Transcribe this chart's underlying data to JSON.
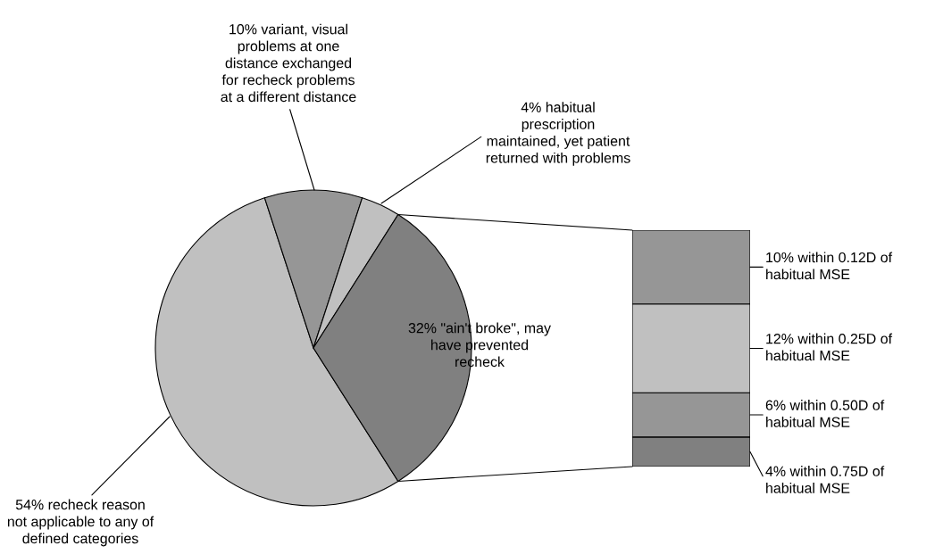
{
  "chart_data": [
    {
      "type": "pie",
      "categories": [
        "54% recheck reason\nnot applicable to any of\ndefined categories",
        "10% variant, visual\nproblems at one\ndistance exchanged\nfor recheck problems\nat a different distance",
        "4% habitual\nprescription\nmaintained, yet patient\nreturned with problems",
        "32% \"ain't broke\", may\nhave prevented\nrecheck"
      ],
      "values": [
        54,
        10,
        4,
        32
      ],
      "colors": [
        "#c0c0c0",
        "#969696",
        "#c0c0c0",
        "#808080"
      ]
    },
    {
      "type": "bar",
      "stacked": true,
      "categories": [
        null
      ],
      "series": [
        {
          "color": "#808080",
          "values": [
            4
          ],
          "value_labels": [
            "4% within 0.75D of\nhabitual MSE"
          ]
        },
        {
          "color": "#969696",
          "values": [
            6
          ],
          "value_labels": [
            "6% within 0.50D of\nhabitual MSE"
          ]
        },
        {
          "color": "#c0c0c0",
          "values": [
            12
          ],
          "value_labels": [
            "12% within 0.25D of\nhabitual MSE"
          ]
        },
        {
          "color": "#969696",
          "values": [
            10
          ],
          "value_labels": [
            "10% within 0.12D of\nhabitual MSE"
          ]
        }
      ]
    }
  ]
}
